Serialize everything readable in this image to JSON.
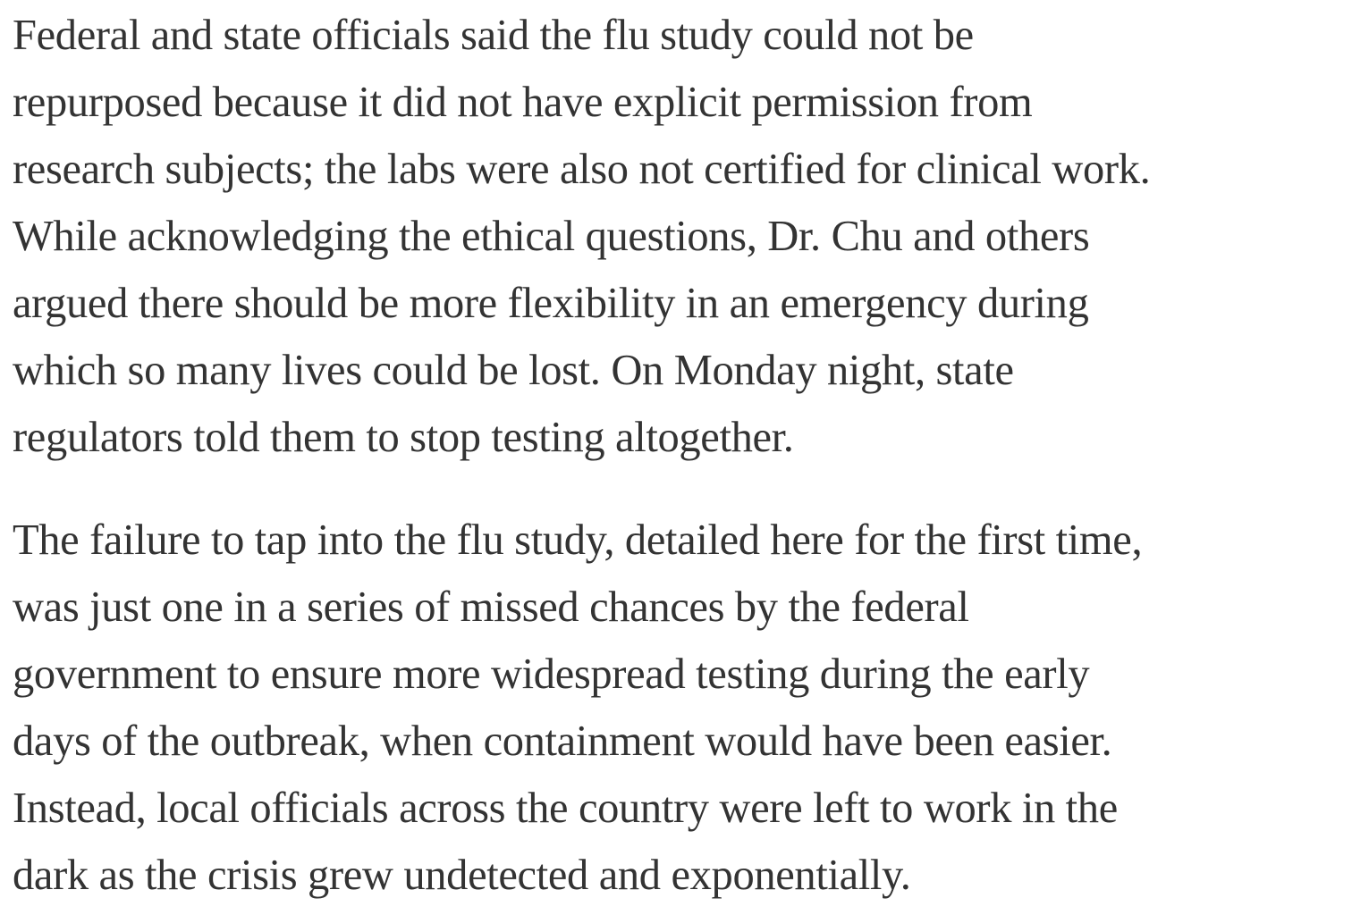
{
  "article": {
    "paragraphs": [
      {
        "lines": [
          "Federal and state officials said the flu study could not be",
          "repurposed because it did not have explicit permission from",
          "research subjects; the labs were also not certified for clinical work.",
          "While acknowledging the ethical questions, Dr. Chu and others",
          "argued there should be more flexibility in an emergency during",
          "which so many lives could be lost. On Monday night, state",
          "regulators told them to stop testing altogether."
        ]
      },
      {
        "lines": [
          "The failure to tap into the flu study, detailed here for the first time,",
          "was just one in a series of missed chances by the federal",
          "government to ensure more widespread testing during the early",
          "days of the outbreak, when containment would have been easier.",
          "Instead, local officials across the country were left to work in the",
          "dark as the crisis grew undetected and exponentially."
        ]
      }
    ]
  }
}
